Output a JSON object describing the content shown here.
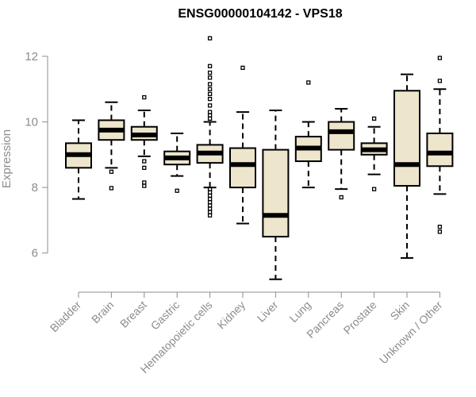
{
  "chart_data": {
    "type": "boxplot",
    "title": "ENSG00000104142 - VPS18",
    "xlabel": "",
    "ylabel": "Expression",
    "ylim": [
      5.0,
      12.7
    ],
    "yticks": [
      6,
      8,
      10,
      12
    ],
    "box_color": "#ede5cc",
    "categories": [
      "Bladder",
      "Brain",
      "Breast",
      "Gastric",
      "Hematopoietic cells",
      "Kidney",
      "Liver",
      "Lung",
      "Pancreas",
      "Prostate",
      "Skin",
      "Unknown / Other"
    ],
    "boxes": [
      {
        "category": "Bladder",
        "whisker_low": 7.65,
        "q1": 8.6,
        "median": 9.0,
        "q3": 9.35,
        "whisker_high": 10.05,
        "outliers": []
      },
      {
        "category": "Brain",
        "whisker_low": 8.6,
        "q1": 9.45,
        "median": 9.75,
        "q3": 10.05,
        "whisker_high": 10.6,
        "outliers": [
          7.98,
          8.48
        ]
      },
      {
        "category": "Breast",
        "whisker_low": 8.95,
        "q1": 9.45,
        "median": 9.6,
        "q3": 9.85,
        "whisker_high": 10.35,
        "outliers": [
          10.75,
          8.8,
          8.6,
          8.15,
          8.05
        ]
      },
      {
        "category": "Gastric",
        "whisker_low": 8.35,
        "q1": 8.7,
        "median": 8.9,
        "q3": 9.1,
        "whisker_high": 9.65,
        "outliers": [
          7.9
        ]
      },
      {
        "category": "Hematopoietic cells",
        "whisker_low": 8.0,
        "q1": 8.75,
        "median": 9.05,
        "q3": 9.3,
        "whisker_high": 10.0,
        "outliers": [
          12.55,
          11.7,
          11.5,
          11.35,
          11.15,
          11.0,
          10.85,
          10.7,
          10.5,
          10.3,
          10.2,
          10.1,
          7.95,
          7.85,
          7.75,
          7.65,
          7.55,
          7.45,
          7.35,
          7.25,
          7.15
        ]
      },
      {
        "category": "Kidney",
        "whisker_low": 6.9,
        "q1": 8.0,
        "median": 8.7,
        "q3": 9.2,
        "whisker_high": 10.3,
        "outliers": [
          11.65
        ]
      },
      {
        "category": "Liver",
        "whisker_low": 5.2,
        "q1": 6.5,
        "median": 7.15,
        "q3": 9.15,
        "whisker_high": 10.35,
        "outliers": []
      },
      {
        "category": "Lung",
        "whisker_low": 8.0,
        "q1": 8.8,
        "median": 9.2,
        "q3": 9.55,
        "whisker_high": 10.0,
        "outliers": [
          11.2
        ]
      },
      {
        "category": "Pancreas",
        "whisker_low": 7.95,
        "q1": 9.15,
        "median": 9.7,
        "q3": 10.0,
        "whisker_high": 10.4,
        "outliers": [
          7.7
        ]
      },
      {
        "category": "Prostate",
        "whisker_low": 8.4,
        "q1": 9.0,
        "median": 9.15,
        "q3": 9.35,
        "whisker_high": 9.85,
        "outliers": [
          10.1,
          7.95
        ]
      },
      {
        "category": "Skin",
        "whisker_low": 5.85,
        "q1": 8.05,
        "median": 8.7,
        "q3": 10.95,
        "whisker_high": 11.45,
        "outliers": []
      },
      {
        "category": "Unknown / Other",
        "whisker_low": 7.8,
        "q1": 8.65,
        "median": 9.05,
        "q3": 9.65,
        "whisker_high": 11.0,
        "outliers": [
          11.95,
          11.25,
          6.8,
          6.65
        ]
      }
    ]
  }
}
